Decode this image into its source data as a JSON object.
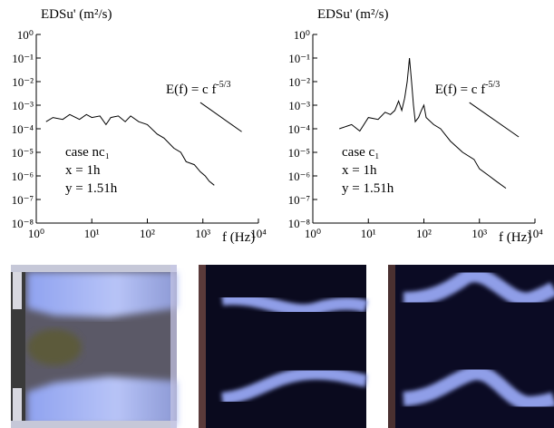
{
  "chart_data": [
    {
      "type": "line",
      "y_label": "EDSu' (m²/s)",
      "x_label": "f (Hz)",
      "log_x": true,
      "log_y": true,
      "color": "#000000",
      "xlim": [
        1,
        10000
      ],
      "xticks": [
        {
          "value": 1,
          "label": "10⁰"
        },
        {
          "value": 10,
          "label": "10¹"
        },
        {
          "value": 100,
          "label": "10²"
        },
        {
          "value": 1000,
          "label": "10³"
        },
        {
          "value": 10000,
          "label": "10⁴"
        }
      ],
      "ylim": [
        1e-08,
        1
      ],
      "yticks": [
        {
          "value": 1,
          "label": "10⁰"
        },
        {
          "value": 0.1,
          "label": "10⁻¹"
        },
        {
          "value": 0.01,
          "label": "10⁻²"
        },
        {
          "value": 0.001,
          "label": "10⁻³"
        },
        {
          "value": 0.0001,
          "label": "10⁻⁴"
        },
        {
          "value": 1e-05,
          "label": "10⁻⁵"
        },
        {
          "value": 1e-06,
          "label": "10⁻⁶"
        },
        {
          "value": 1e-07,
          "label": "10⁻⁷"
        },
        {
          "value": 1e-08,
          "label": "10⁻⁸"
        }
      ],
      "x": [
        1.5,
        2,
        3,
        4,
        6,
        8,
        10,
        14,
        18,
        22,
        30,
        40,
        50,
        70,
        100,
        150,
        200,
        300,
        400,
        500,
        700,
        900,
        1100,
        1300,
        1600
      ],
      "values": [
        0.0002,
        0.0003,
        0.00025,
        0.0004,
        0.00025,
        0.0004,
        0.0003,
        0.00035,
        0.00015,
        0.0003,
        0.00035,
        0.0002,
        0.00035,
        0.0002,
        0.00015,
        6e-05,
        4e-05,
        1.5e-05,
        1e-05,
        4e-06,
        3e-06,
        1.5e-06,
        1e-06,
        6e-07,
        4e-07
      ],
      "reference_line": {
        "x": [
          900,
          5000
        ],
        "values": [
          0.0013,
          7.5e-05
        ]
      },
      "slope_label": {
        "text": "E(f) = c f",
        "superscript": "-5/3"
      },
      "case_text": [
        "case nc₁",
        "x = 1h",
        "y = 1.51h"
      ]
    },
    {
      "type": "line",
      "y_label": "EDSu' (m²/s)",
      "x_label": "f (Hz)",
      "log_x": true,
      "log_y": true,
      "color": "#000000",
      "xlim": [
        1,
        10000
      ],
      "xticks": [
        {
          "value": 1,
          "label": "10⁰"
        },
        {
          "value": 10,
          "label": "10¹"
        },
        {
          "value": 100,
          "label": "10²"
        },
        {
          "value": 1000,
          "label": "10³"
        },
        {
          "value": 10000,
          "label": "10⁴"
        }
      ],
      "ylim": [
        1e-08,
        1
      ],
      "yticks": [
        {
          "value": 1,
          "label": "10⁰"
        },
        {
          "value": 0.1,
          "label": "10⁻¹"
        },
        {
          "value": 0.01,
          "label": "10⁻²"
        },
        {
          "value": 0.001,
          "label": "10⁻³"
        },
        {
          "value": 0.0001,
          "label": "10⁻⁴"
        },
        {
          "value": 1e-05,
          "label": "10⁻⁵"
        },
        {
          "value": 1e-06,
          "label": "10⁻⁶"
        },
        {
          "value": 1e-07,
          "label": "10⁻⁷"
        },
        {
          "value": 1e-08,
          "label": "10⁻⁸"
        }
      ],
      "x": [
        3,
        5,
        7,
        10,
        15,
        20,
        25,
        30,
        35,
        40,
        45,
        50,
        55,
        60,
        65,
        70,
        80,
        90,
        100,
        110,
        150,
        200,
        300,
        500,
        800,
        1000,
        1500,
        2000,
        3000
      ],
      "values": [
        0.0001,
        0.00015,
        8e-05,
        0.0003,
        0.00025,
        0.0005,
        0.0004,
        0.0006,
        0.0015,
        0.0006,
        0.002,
        0.01,
        0.1,
        0.01,
        0.001,
        0.0002,
        0.0003,
        0.0006,
        0.001,
        0.0003,
        0.00015,
        0.0001,
        3e-05,
        1e-05,
        5e-06,
        2e-06,
        1e-06,
        6e-07,
        3e-07
      ],
      "reference_line": {
        "x": [
          660,
          5100
        ],
        "values": [
          0.0013,
          4.5e-05
        ]
      },
      "slope_label": {
        "text": "E(f) = c f",
        "superscript": "-5/3"
      },
      "case_text": [
        "case c₁",
        "x = 1h",
        "y = 1.51h"
      ]
    }
  ]
}
